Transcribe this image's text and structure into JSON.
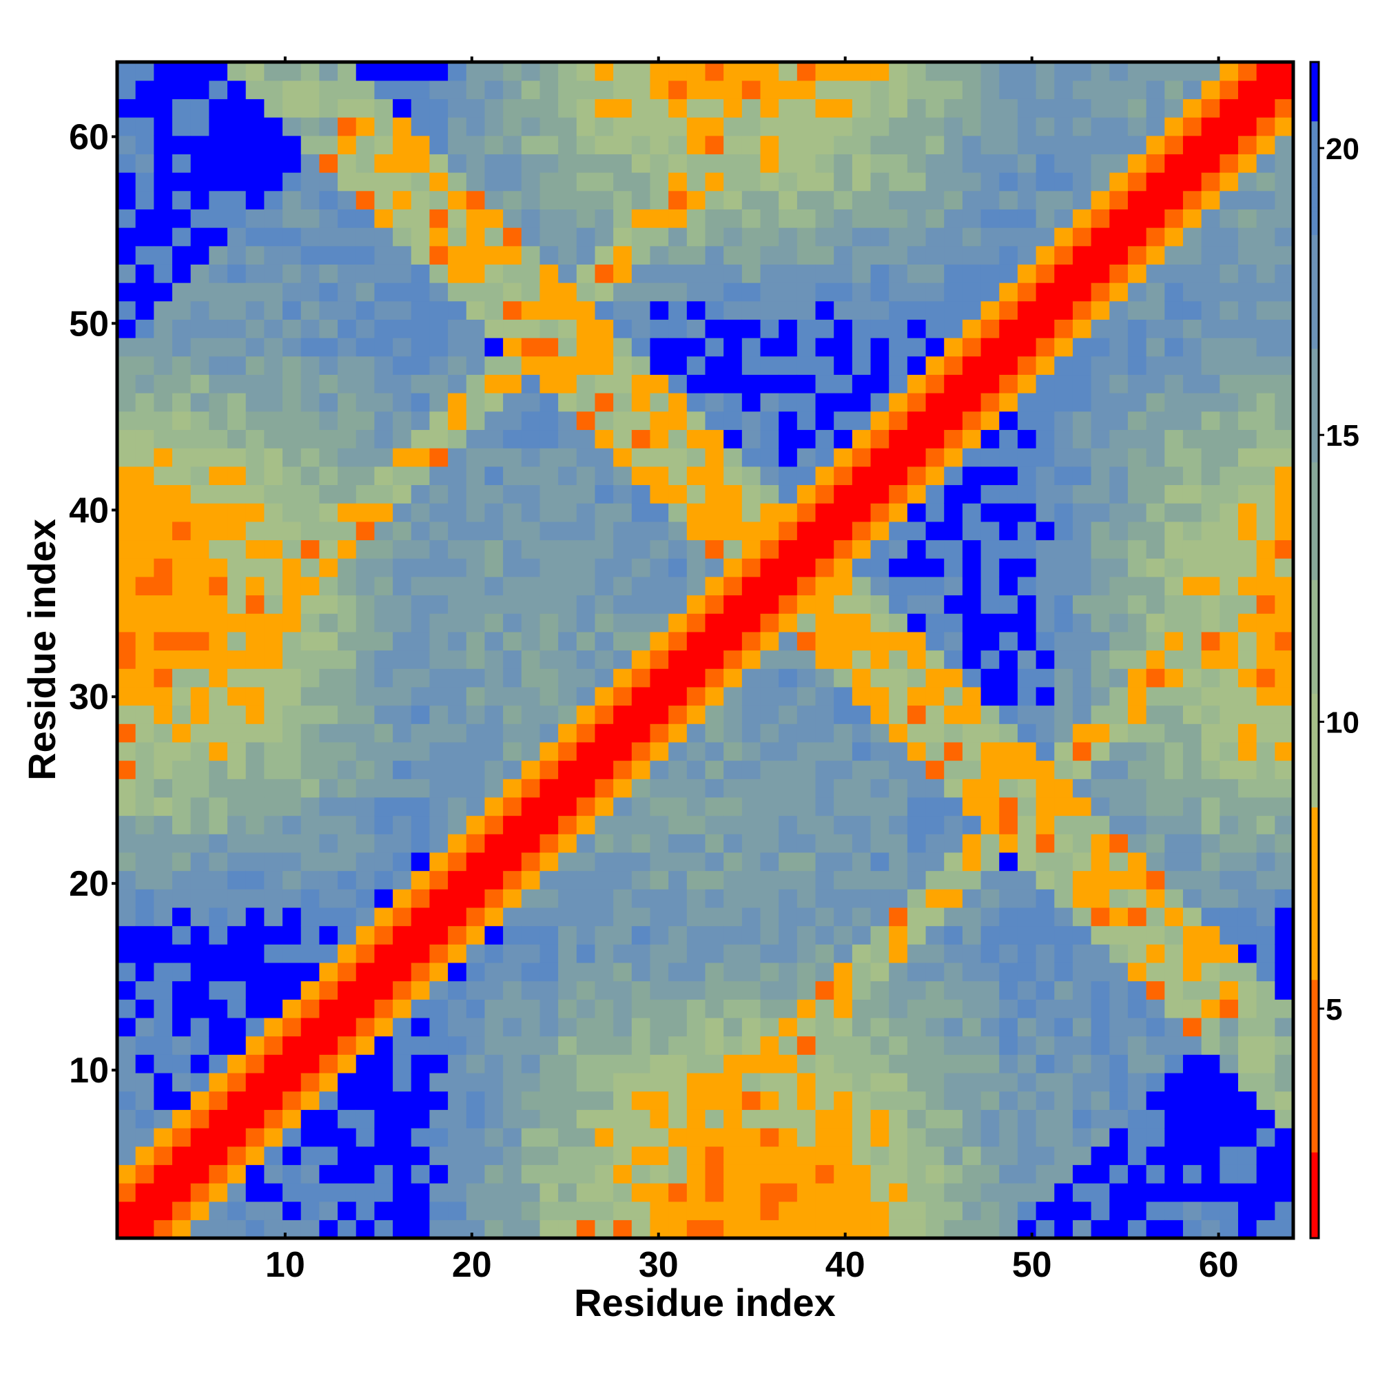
{
  "chart_data": {
    "type": "heatmap",
    "title": "",
    "xlabel": "Residue index",
    "ylabel": "Residue index",
    "n": 64,
    "xlim": [
      1,
      64
    ],
    "ylim": [
      1,
      64
    ],
    "x_ticks": [
      10,
      20,
      30,
      40,
      50,
      60
    ],
    "y_ticks": [
      10,
      20,
      30,
      40,
      50,
      60
    ],
    "colorbar": {
      "min": 1,
      "max": 21.5,
      "ticks": [
        5,
        10,
        15,
        20
      ],
      "palette": [
        {
          "max": 2.5,
          "color": "#ff0000"
        },
        {
          "max": 5.5,
          "color": "#ff6600"
        },
        {
          "max": 8.5,
          "color": "#ffa500"
        },
        {
          "max": 10.5,
          "color": "#a6bf88"
        },
        {
          "max": 12.5,
          "color": "#9ab890"
        },
        {
          "max": 14.5,
          "color": "#88a89a"
        },
        {
          "max": 16.5,
          "color": "#7c9ea8"
        },
        {
          "max": 18.5,
          "color": "#6c93b8"
        },
        {
          "max": 20.5,
          "color": "#5b89c4"
        },
        {
          "max": 99,
          "color": "#0000ff"
        }
      ]
    },
    "grid": false,
    "legend": "colorbar-right",
    "description": "Symmetric residue distance map (colour = distance), red diagonal band with orange off-diagonal contact streaks and blue far-distance regions"
  }
}
